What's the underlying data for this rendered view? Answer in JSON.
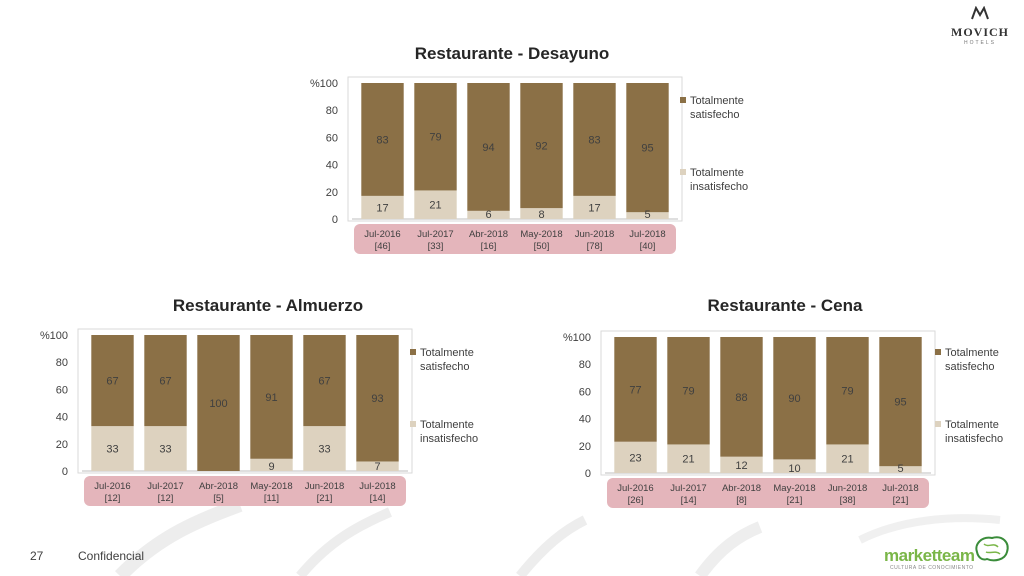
{
  "brand": {
    "hotel_logo": "MOVICH",
    "hotel_logo_sub": "HOTELS",
    "agency_logo": "marketteam",
    "agency_tagline": "CULTURA DE CONOCIMIENTO"
  },
  "footer": {
    "page_number": "27",
    "label": "Confidencial"
  },
  "colors": {
    "satisfied": "#8B7046",
    "dissatisfied": "#DDD2BF",
    "pill": "#E4B5BB",
    "axis": "#bfbfbf"
  },
  "chart_data": [
    {
      "type": "bar",
      "stacked": true,
      "title": "Restaurante - Desayuno",
      "ylabel": "%",
      "ylim": [
        0,
        100
      ],
      "yticks": [
        "0",
        "20",
        "40",
        "60",
        "80",
        "100"
      ],
      "categories": [
        "Jul-2016",
        "Jul-2017",
        "Abr-2018",
        "May-2018",
        "Jun-2018",
        "Jul-2018"
      ],
      "counts": [
        "[46]",
        "[33]",
        "[16]",
        "[50]",
        "[78]",
        "[40]"
      ],
      "series": [
        {
          "name": "Totalmente insatisfecho",
          "values": [
            17,
            21,
            6,
            8,
            17,
            5
          ]
        },
        {
          "name": "Totalmente satisfecho",
          "values": [
            83,
            79,
            94,
            92,
            83,
            95
          ]
        }
      ],
      "legend": [
        "Totalmente satisfecho",
        "Totalmente insatisfecho"
      ],
      "legend_position": "right"
    },
    {
      "type": "bar",
      "stacked": true,
      "title": "Restaurante - Almuerzo",
      "ylabel": "%",
      "ylim": [
        0,
        100
      ],
      "yticks": [
        "0",
        "20",
        "40",
        "60",
        "80",
        "100"
      ],
      "categories": [
        "Jul-2016",
        "Jul-2017",
        "Abr-2018",
        "May-2018",
        "Jun-2018",
        "Jul-2018"
      ],
      "counts": [
        "[12]",
        "[12]",
        "[5]",
        "[11]",
        "[21]",
        "[14]"
      ],
      "series": [
        {
          "name": "Totalmente insatisfecho",
          "values": [
            33,
            33,
            0,
            9,
            33,
            7
          ]
        },
        {
          "name": "Totalmente satisfecho",
          "values": [
            67,
            67,
            100,
            91,
            67,
            93
          ]
        }
      ],
      "legend": [
        "Totalmente satisfecho",
        "Totalmente insatisfecho"
      ],
      "legend_position": "right"
    },
    {
      "type": "bar",
      "stacked": true,
      "title": "Restaurante - Cena",
      "ylabel": "%",
      "ylim": [
        0,
        100
      ],
      "yticks": [
        "0",
        "20",
        "40",
        "60",
        "80",
        "100"
      ],
      "categories": [
        "Jul-2016",
        "Jul-2017",
        "Abr-2018",
        "May-2018",
        "Jun-2018",
        "Jul-2018"
      ],
      "counts": [
        "[26]",
        "[14]",
        "[8]",
        "[21]",
        "[38]",
        "[21]"
      ],
      "series": [
        {
          "name": "Totalmente insatisfecho",
          "values": [
            23,
            21,
            12,
            10,
            21,
            5
          ]
        },
        {
          "name": "Totalmente satisfecho",
          "values": [
            77,
            79,
            88,
            90,
            79,
            95
          ]
        }
      ],
      "legend": [
        "Totalmente satisfecho",
        "Totalmente insatisfecho"
      ],
      "legend_position": "right"
    }
  ]
}
